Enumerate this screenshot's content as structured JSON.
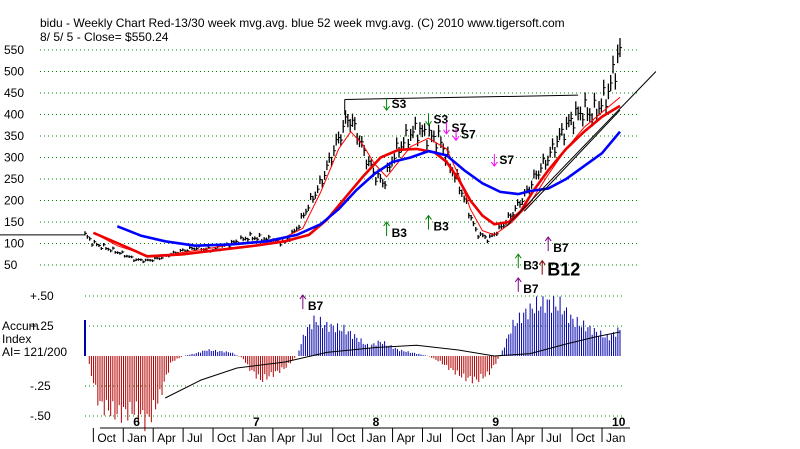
{
  "chart_data": {
    "type": "line",
    "title": "bidu  - Weekly Chart  Red-13/30 week mvg.avg.  blue 52 week mvg.avg.  (C) 2010 www.tigersoft.com",
    "subtitle": "8/ 5/ 5 -     Close= $550.24",
    "price_panel": {
      "ylim": [
        50,
        560
      ],
      "y_ticks": [
        550,
        500,
        450,
        400,
        350,
        300,
        250,
        200,
        150,
        100,
        50
      ],
      "y_tick_labels": [
        "550",
        "500",
        "450",
        "400",
        "350",
        "300",
        "250",
        "200",
        "150",
        "100",
        "50"
      ],
      "x_start_year": 2005.58,
      "x_end_year": 2010.05,
      "close": [
        [
          2005.58,
          120
        ],
        [
          2005.65,
          100
        ],
        [
          2005.75,
          90
        ],
        [
          2005.9,
          75
        ],
        [
          2006.0,
          62
        ],
        [
          2006.1,
          60
        ],
        [
          2006.2,
          66
        ],
        [
          2006.35,
          80
        ],
        [
          2006.5,
          90
        ],
        [
          2006.65,
          85
        ],
        [
          2006.8,
          100
        ],
        [
          2006.95,
          115
        ],
        [
          2007.1,
          110
        ],
        [
          2007.25,
          102
        ],
        [
          2007.35,
          135
        ],
        [
          2007.45,
          190
        ],
        [
          2007.55,
          240
        ],
        [
          2007.62,
          290
        ],
        [
          2007.7,
          345
        ],
        [
          2007.78,
          395
        ],
        [
          2007.85,
          360
        ],
        [
          2007.92,
          305
        ],
        [
          2008.0,
          260
        ],
        [
          2008.08,
          240
        ],
        [
          2008.15,
          300
        ],
        [
          2008.25,
          340
        ],
        [
          2008.35,
          365
        ],
        [
          2008.45,
          350
        ],
        [
          2008.55,
          340
        ],
        [
          2008.6,
          300
        ],
        [
          2008.7,
          240
        ],
        [
          2008.78,
          180
        ],
        [
          2008.85,
          125
        ],
        [
          2008.95,
          110
        ],
        [
          2009.05,
          135
        ],
        [
          2009.15,
          170
        ],
        [
          2009.25,
          210
        ],
        [
          2009.35,
          260
        ],
        [
          2009.45,
          300
        ],
        [
          2009.55,
          350
        ],
        [
          2009.65,
          390
        ],
        [
          2009.75,
          410
        ],
        [
          2009.82,
          400
        ],
        [
          2009.88,
          420
        ],
        [
          2009.95,
          450
        ],
        [
          2010.0,
          500
        ],
        [
          2010.05,
          550
        ]
      ],
      "series": [
        {
          "name": "13 week mvg.avg.",
          "color": "#ff0000",
          "values": [
            [
              2005.65,
              125
            ],
            [
              2005.85,
              95
            ],
            [
              2006.1,
              72
            ],
            [
              2006.3,
              75
            ],
            [
              2006.6,
              88
            ],
            [
              2006.9,
              102
            ],
            [
              2007.2,
              108
            ],
            [
              2007.4,
              135
            ],
            [
              2007.55,
              220
            ],
            [
              2007.7,
              320
            ],
            [
              2007.8,
              360
            ],
            [
              2007.9,
              330
            ],
            [
              2008.0,
              285
            ],
            [
              2008.1,
              255
            ],
            [
              2008.2,
              290
            ],
            [
              2008.3,
              325
            ],
            [
              2008.45,
              345
            ],
            [
              2008.6,
              320
            ],
            [
              2008.7,
              260
            ],
            [
              2008.8,
              180
            ],
            [
              2008.9,
              130
            ],
            [
              2009.0,
              120
            ],
            [
              2009.15,
              150
            ],
            [
              2009.3,
              195
            ],
            [
              2009.45,
              260
            ],
            [
              2009.6,
              320
            ],
            [
              2009.75,
              370
            ],
            [
              2009.9,
              405
            ],
            [
              2010.05,
              440
            ]
          ]
        },
        {
          "name": "30 week mvg.avg.",
          "color": "#ee0000",
          "values": [
            [
              2005.65,
              125
            ],
            [
              2005.9,
              95
            ],
            [
              2006.1,
              70
            ],
            [
              2006.4,
              75
            ],
            [
              2006.7,
              85
            ],
            [
              2007.0,
              95
            ],
            [
              2007.25,
              105
            ],
            [
              2007.45,
              120
            ],
            [
              2007.6,
              155
            ],
            [
              2007.75,
              205
            ],
            [
              2007.9,
              255
            ],
            [
              2008.05,
              300
            ],
            [
              2008.2,
              318
            ],
            [
              2008.35,
              320
            ],
            [
              2008.5,
              312
            ],
            [
              2008.6,
              290
            ],
            [
              2008.7,
              250
            ],
            [
              2008.8,
              200
            ],
            [
              2008.9,
              165
            ],
            [
              2009.0,
              145
            ],
            [
              2009.12,
              150
            ],
            [
              2009.22,
              175
            ],
            [
              2009.32,
              220
            ],
            [
              2009.45,
              270
            ],
            [
              2009.6,
              320
            ],
            [
              2009.75,
              360
            ],
            [
              2009.9,
              395
            ],
            [
              2010.05,
              420
            ]
          ]
        },
        {
          "name": "52 week mvg.avg.",
          "color": "#0000ff",
          "values": [
            [
              2005.85,
              140
            ],
            [
              2006.05,
              118
            ],
            [
              2006.25,
              105
            ],
            [
              2006.5,
              95
            ],
            [
              2006.8,
              98
            ],
            [
              2007.1,
              105
            ],
            [
              2007.35,
              120
            ],
            [
              2007.55,
              145
            ],
            [
              2007.7,
              180
            ],
            [
              2007.85,
              225
            ],
            [
              2008.0,
              262
            ],
            [
              2008.15,
              290
            ],
            [
              2008.3,
              300
            ],
            [
              2008.45,
              315
            ],
            [
              2008.6,
              305
            ],
            [
              2008.75,
              270
            ],
            [
              2008.9,
              240
            ],
            [
              2009.05,
              220
            ],
            [
              2009.2,
              215
            ],
            [
              2009.3,
              222
            ],
            [
              2009.45,
              228
            ],
            [
              2009.6,
              250
            ],
            [
              2009.75,
              280
            ],
            [
              2009.9,
              310
            ],
            [
              2010.05,
              360
            ]
          ]
        }
      ],
      "trendlines": [
        {
          "from": [
            2005.0,
            120
          ],
          "to": [
            2005.58,
            120
          ],
          "color": "#000000"
        },
        {
          "from": [
            2007.75,
            435
          ],
          "to": [
            2009.7,
            445
          ],
          "color": "#000000"
        },
        {
          "from": [
            2009.1,
            140
          ],
          "to": [
            2010.35,
            500
          ],
          "color": "#000000"
        },
        {
          "from": [
            2009.25,
            175
          ],
          "to": [
            2010.05,
            410
          ],
          "color": "#000000"
        }
      ],
      "signals": [
        {
          "label": "S3",
          "date": 2008.1,
          "price": 410,
          "color": "#008000",
          "dir": "down"
        },
        {
          "label": "S3",
          "date": 2008.45,
          "price": 375,
          "color": "#008000",
          "dir": "down"
        },
        {
          "label": "S7",
          "date": 2008.6,
          "price": 355,
          "color": "#ff00ff",
          "dir": "down"
        },
        {
          "label": "S7",
          "date": 2008.68,
          "price": 340,
          "color": "#ff00ff",
          "dir": "down"
        },
        {
          "label": "S7",
          "date": 2009.0,
          "price": 280,
          "color": "#ff00ff",
          "dir": "down"
        },
        {
          "label": "B3",
          "date": 2008.1,
          "price": 150,
          "color": "#008000",
          "dir": "up"
        },
        {
          "label": "B3",
          "date": 2008.45,
          "price": 165,
          "color": "#008000",
          "dir": "up"
        },
        {
          "label": "B7",
          "date": 2009.45,
          "price": 115,
          "color": "#800080",
          "dir": "up"
        },
        {
          "label": "B3",
          "date": 2009.2,
          "price": 75,
          "color": "#008000",
          "dir": "up"
        },
        {
          "label": "B12",
          "date": 2009.4,
          "price": 60,
          "color": "#800000",
          "dir": "up"
        },
        {
          "label": "B7",
          "date": 2007.4,
          "price": -20,
          "color": "#800080",
          "dir": "up"
        },
        {
          "label": "B7",
          "date": 2009.2,
          "price": 20,
          "color": "#800080",
          "dir": "up"
        }
      ]
    },
    "accum_panel": {
      "label": "Accum\nIndex",
      "ai_label": "AI= 121/200",
      "ylim": [
        -0.6,
        0.6
      ],
      "y_ticks": [
        0.5,
        0.25,
        -0.25,
        -0.5
      ],
      "y_tick_labels": [
        "+.50",
        "+.25",
        "-.25",
        "-.50"
      ],
      "values": [
        [
          2005.58,
          0.08
        ],
        [
          2005.62,
          -0.1
        ],
        [
          2005.7,
          -0.4
        ],
        [
          2005.85,
          -0.48
        ],
        [
          2006.0,
          -0.45
        ],
        [
          2006.1,
          -0.55
        ],
        [
          2006.2,
          -0.35
        ],
        [
          2006.3,
          -0.05
        ],
        [
          2006.4,
          0.0
        ],
        [
          2006.5,
          0.02
        ],
        [
          2006.6,
          0.05
        ],
        [
          2006.7,
          0.04
        ],
        [
          2006.8,
          0.03
        ],
        [
          2006.9,
          -0.02
        ],
        [
          2006.95,
          -0.1
        ],
        [
          2007.05,
          -0.2
        ],
        [
          2007.15,
          -0.15
        ],
        [
          2007.25,
          -0.1
        ],
        [
          2007.35,
          0.0
        ],
        [
          2007.42,
          0.2
        ],
        [
          2007.5,
          0.3
        ],
        [
          2007.6,
          0.25
        ],
        [
          2007.75,
          0.22
        ],
        [
          2007.85,
          0.15
        ],
        [
          2007.95,
          0.08
        ],
        [
          2008.05,
          0.12
        ],
        [
          2008.2,
          0.05
        ],
        [
          2008.35,
          0.02
        ],
        [
          2008.45,
          0.0
        ],
        [
          2008.55,
          -0.05
        ],
        [
          2008.65,
          -0.12
        ],
        [
          2008.75,
          -0.18
        ],
        [
          2008.85,
          -0.2
        ],
        [
          2008.95,
          -0.15
        ],
        [
          2009.05,
          0.0
        ],
        [
          2009.15,
          0.25
        ],
        [
          2009.25,
          0.35
        ],
        [
          2009.35,
          0.42
        ],
        [
          2009.45,
          0.44
        ],
        [
          2009.55,
          0.42
        ],
        [
          2009.65,
          0.3
        ],
        [
          2009.75,
          0.25
        ],
        [
          2009.85,
          0.2
        ],
        [
          2009.95,
          0.15
        ],
        [
          2010.05,
          0.22
        ]
      ],
      "ma": [
        [
          2006.25,
          -0.35
        ],
        [
          2006.55,
          -0.2
        ],
        [
          2006.85,
          -0.1
        ],
        [
          2007.25,
          -0.05
        ],
        [
          2007.6,
          0.03
        ],
        [
          2008.0,
          0.07
        ],
        [
          2008.35,
          0.09
        ],
        [
          2008.7,
          0.05
        ],
        [
          2009.0,
          0.0
        ],
        [
          2009.3,
          0.02
        ],
        [
          2009.6,
          0.1
        ],
        [
          2009.85,
          0.16
        ],
        [
          2010.05,
          0.2
        ]
      ]
    },
    "x_axis": {
      "month_labels": [
        {
          "label": "Oct",
          "date": 2005.75
        },
        {
          "label": "Jan",
          "date": 2006.0
        },
        {
          "label": "Apr",
          "date": 2006.25
        },
        {
          "label": "Jul",
          "date": 2006.5
        },
        {
          "label": "Oct",
          "date": 2006.75
        },
        {
          "label": "Jan",
          "date": 2007.0
        },
        {
          "label": "Apr",
          "date": 2007.25
        },
        {
          "label": "Jul",
          "date": 2007.5
        },
        {
          "label": "Oct",
          "date": 2007.75
        },
        {
          "label": "Jan",
          "date": 2008.0
        },
        {
          "label": "Apr",
          "date": 2008.25
        },
        {
          "label": "Jul",
          "date": 2008.5
        },
        {
          "label": "Oct",
          "date": 2008.75
        },
        {
          "label": "Jan",
          "date": 2009.0
        },
        {
          "label": "Apr",
          "date": 2009.25
        },
        {
          "label": "Jul",
          "date": 2009.5
        },
        {
          "label": "Oct",
          "date": 2009.75
        },
        {
          "label": "Jan",
          "date": 2010.0
        }
      ],
      "year_labels": [
        {
          "label": "6",
          "date": 2006.0
        },
        {
          "label": "7",
          "date": 2007.0
        },
        {
          "label": "8",
          "date": 2008.0
        },
        {
          "label": "9",
          "date": 2009.0
        },
        {
          "label": "10",
          "date": 2010.0
        }
      ]
    }
  }
}
